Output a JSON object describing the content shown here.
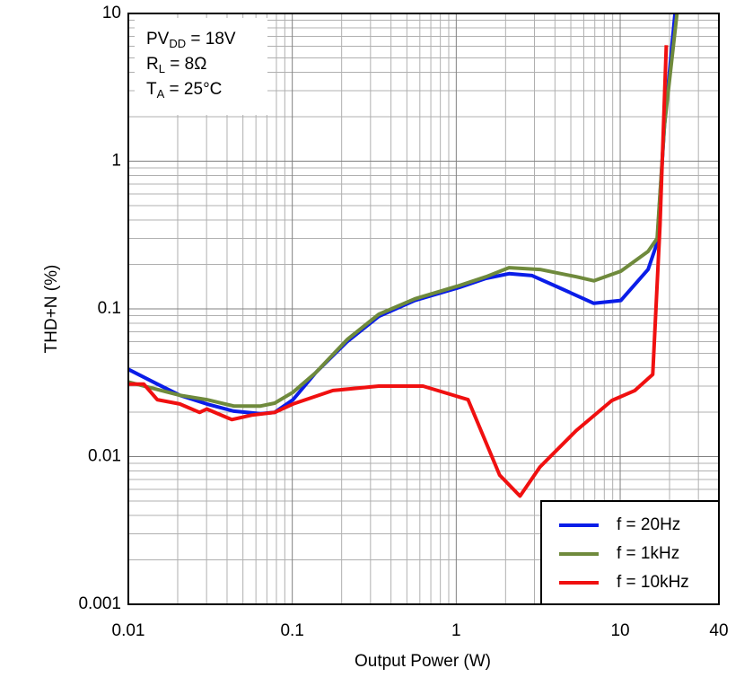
{
  "chart_data": {
    "type": "line",
    "x_label": "Output Power (W)",
    "y_label": "THD+N (%)",
    "log_x": true,
    "log_y": true,
    "grid": true,
    "legend": "lower right",
    "xlim": [
      0.01,
      40
    ],
    "ylim": [
      0.001,
      10
    ],
    "xticks": [
      0.01,
      0.1,
      1,
      10,
      40
    ],
    "yticks": [
      0.001,
      0.01,
      0.1,
      1,
      10
    ],
    "annotations": [
      [
        "PV",
        "DD",
        " = 18V"
      ],
      [
        "R",
        "L",
        " = 8Ω"
      ],
      [
        "T",
        "A",
        " = 25°C"
      ]
    ],
    "series": [
      {
        "name": "f = 20Hz",
        "color": "#0a1de8",
        "x": [
          0.01,
          0.015,
          0.0206,
          0.0301,
          0.044,
          0.064,
          0.078,
          0.101,
          0.139,
          0.216,
          0.337,
          0.56,
          1.05,
          1.52,
          2.1,
          2.9,
          4.2,
          6.9,
          10.1,
          14.8,
          16.8,
          18.6,
          21.6
        ],
        "values": [
          0.039,
          0.031,
          0.026,
          0.0227,
          0.0203,
          0.0195,
          0.0199,
          0.0243,
          0.037,
          0.06,
          0.089,
          0.114,
          0.14,
          0.161,
          0.173,
          0.168,
          0.14,
          0.109,
          0.114,
          0.185,
          0.28,
          1.74,
          10
        ]
      },
      {
        "name": "f = 1kHz",
        "color": "#6f8a3c",
        "x": [
          0.01,
          0.0206,
          0.0301,
          0.044,
          0.064,
          0.078,
          0.101,
          0.139,
          0.216,
          0.337,
          0.56,
          1.05,
          1.52,
          2.1,
          3.24,
          5.4,
          6.9,
          10.1,
          14.8,
          16.8,
          18.6,
          22.2
        ],
        "values": [
          0.032,
          0.026,
          0.0243,
          0.022,
          0.022,
          0.023,
          0.0273,
          0.037,
          0.062,
          0.092,
          0.117,
          0.144,
          0.165,
          0.19,
          0.185,
          0.165,
          0.155,
          0.18,
          0.245,
          0.3,
          1.74,
          10
        ]
      },
      {
        "name": "f = 10kHz",
        "color": "#f01010",
        "x": [
          0.01,
          0.0124,
          0.015,
          0.0206,
          0.0272,
          0.0301,
          0.0428,
          0.0566,
          0.078,
          0.101,
          0.177,
          0.337,
          0.627,
          1.18,
          1.84,
          2.45,
          3.24,
          5.4,
          8.9,
          12.3,
          15.8,
          17.5,
          19.1
        ],
        "values": [
          0.031,
          0.031,
          0.0243,
          0.0227,
          0.0199,
          0.021,
          0.0178,
          0.0191,
          0.0199,
          0.0227,
          0.028,
          0.03,
          0.03,
          0.0243,
          0.0075,
          0.0054,
          0.0085,
          0.015,
          0.024,
          0.028,
          0.036,
          0.37,
          6.1
        ]
      }
    ]
  }
}
